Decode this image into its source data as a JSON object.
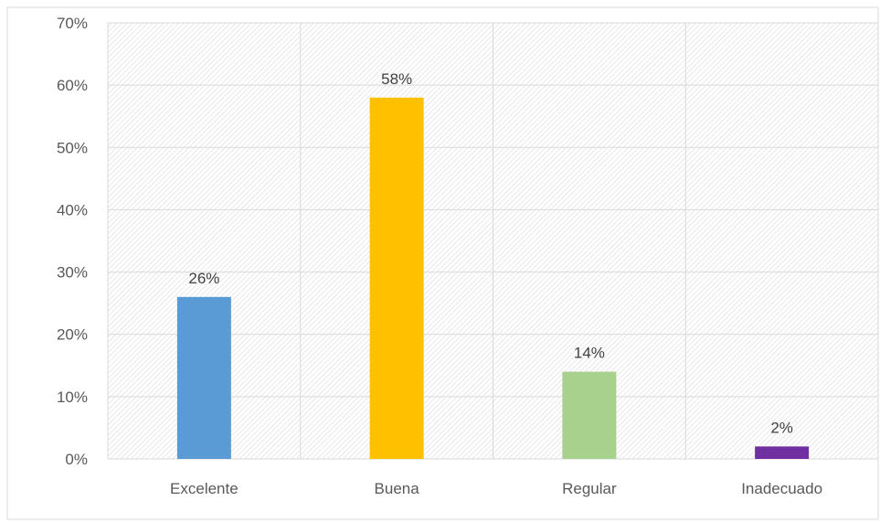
{
  "chart_data": {
    "type": "bar",
    "title": "",
    "xlabel": "",
    "ylabel": "",
    "categories": [
      "Excelente",
      "Buena",
      "Regular",
      "Inadecuado"
    ],
    "values": [
      26,
      58,
      14,
      2
    ],
    "value_labels": [
      "26%",
      "58%",
      "14%",
      "2%"
    ],
    "ylim": [
      0,
      70
    ],
    "yticks": [
      0,
      10,
      20,
      30,
      40,
      50,
      60,
      70
    ],
    "ytick_labels": [
      "0%",
      "10%",
      "20%",
      "30%",
      "40%",
      "50%",
      "60%",
      "70%"
    ],
    "colors": [
      "#5B9BD5",
      "#FFC000",
      "#A9D18E",
      "#7030A0"
    ],
    "grid": true,
    "legend": "none"
  }
}
